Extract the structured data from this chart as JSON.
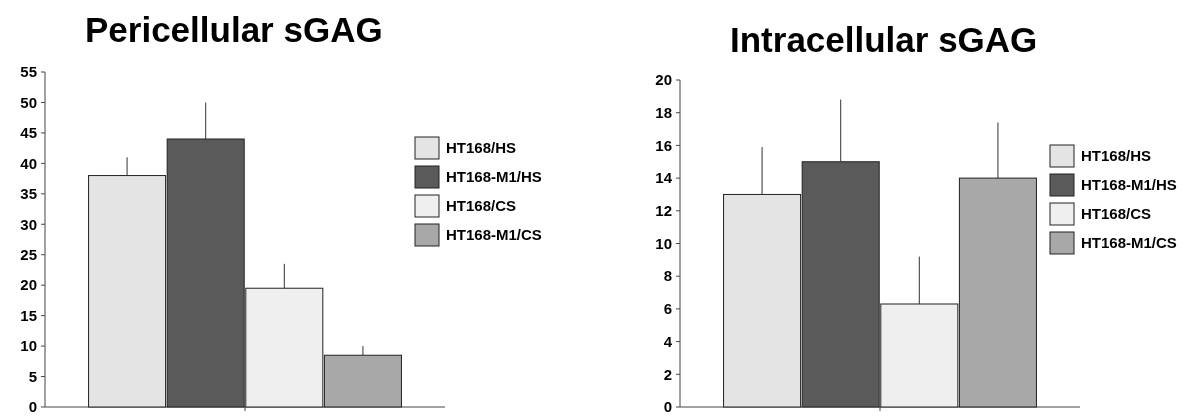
{
  "chart_data": [
    {
      "type": "bar",
      "title": "Pericellular sGAG",
      "categories": [
        null
      ],
      "ylim": [
        0,
        55
      ],
      "yticks": [
        0,
        5,
        10,
        15,
        20,
        25,
        30,
        35,
        40,
        45,
        50,
        55
      ],
      "tick_labels": "y",
      "legend": "right",
      "grid": false,
      "series": [
        {
          "name": "HT168/HS",
          "color": "#e4e4e4",
          "values": [
            38
          ],
          "errors": [
            [
              38,
              41
            ]
          ]
        },
        {
          "name": "HT168-M1/HS",
          "color": "#5a5a5a",
          "values": [
            44
          ],
          "errors": [
            [
              44,
              50
            ]
          ]
        },
        {
          "name": "HT168/CS",
          "color": "#efefef",
          "values": [
            19.5
          ],
          "errors": [
            [
              19.5,
              23.5
            ]
          ]
        },
        {
          "name": "HT168-M1/CS",
          "color": "#a8a8a8",
          "values": [
            8.5
          ],
          "errors": [
            [
              8.5,
              10
            ]
          ]
        }
      ]
    },
    {
      "type": "bar",
      "title": "Intracellular sGAG",
      "categories": [
        null
      ],
      "ylim": [
        0,
        20
      ],
      "yticks": [
        0,
        2,
        4,
        6,
        8,
        10,
        12,
        14,
        16,
        18,
        20
      ],
      "tick_labels": "y",
      "legend": "right",
      "grid": false,
      "series": [
        {
          "name": "HT168/HS",
          "color": "#e4e4e4",
          "values": [
            13
          ],
          "errors": [
            [
              13,
              15.9
            ]
          ]
        },
        {
          "name": "HT168-M1/HS",
          "color": "#5a5a5a",
          "values": [
            15
          ],
          "errors": [
            [
              15,
              18.8
            ]
          ]
        },
        {
          "name": "HT168/CS",
          "color": "#efefef",
          "values": [
            6.3
          ],
          "errors": [
            [
              6.3,
              9.2
            ]
          ]
        },
        {
          "name": "HT168-M1/CS",
          "color": "#a8a8a8",
          "values": [
            14
          ],
          "errors": [
            [
              14,
              17.4
            ]
          ]
        }
      ]
    }
  ]
}
